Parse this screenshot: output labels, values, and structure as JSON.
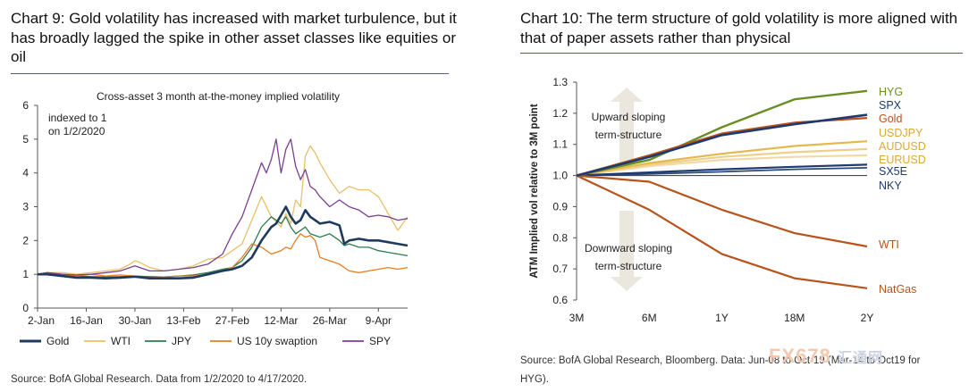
{
  "left": {
    "title": "Chart 9: Gold volatility has increased with market turbulence, but it has broadly lagged the spike in other asset classes like equities or oil",
    "source": "Source: BofA Global Research. Data from 1/2/2020 to 4/17/2020."
  },
  "right": {
    "title": "Chart 10: The term structure of gold volatility is more aligned with that of paper assets rather than physical",
    "source": "Source: BofA Global Research, Bloomberg. Data: Jun-08 to Oct-19 (Mar-14 to Oct19 for HYG)."
  },
  "watermark": {
    "brand": "FX678",
    "cn": "汇通网"
  },
  "chart_data": [
    {
      "type": "line",
      "title": "Cross-asset 3 month at-the-money implied volatility",
      "annotation": [
        "indexed to 1",
        "on 1/2/2020"
      ],
      "xlabel": "",
      "ylabel": "",
      "ylim": [
        0,
        6
      ],
      "yticks": [
        "0",
        "1",
        "2",
        "3",
        "4",
        "5",
        "6"
      ],
      "xticks": [
        "2-Jan",
        "16-Jan",
        "30-Jan",
        "13-Feb",
        "27-Feb",
        "12-Mar",
        "26-Mar",
        "9-Apr"
      ],
      "xtick_pos": [
        0,
        10,
        20,
        30,
        40,
        50,
        60,
        70
      ],
      "xmax": 76,
      "legend_position": "bottom",
      "series": [
        {
          "name": "Gold",
          "color": "#1f3a5f",
          "width": 2.6,
          "x": [
            0,
            2,
            5,
            8,
            11,
            14,
            17,
            20,
            23,
            26,
            29,
            32,
            35,
            38,
            40,
            42,
            44,
            46,
            48,
            49,
            50,
            51,
            52,
            53,
            54,
            55,
            56,
            57,
            58,
            60,
            62,
            63,
            64,
            66,
            68,
            70,
            72,
            74,
            76
          ],
          "values": [
            1.0,
            1.0,
            0.95,
            0.9,
            0.9,
            0.88,
            0.9,
            0.93,
            0.88,
            0.88,
            0.88,
            0.9,
            1.0,
            1.1,
            1.15,
            1.25,
            1.5,
            2.0,
            2.4,
            2.5,
            2.75,
            3.0,
            2.7,
            2.5,
            2.6,
            2.9,
            2.7,
            2.6,
            2.5,
            2.55,
            2.45,
            1.9,
            2.0,
            2.05,
            2.0,
            2.0,
            1.95,
            1.9,
            1.85
          ]
        },
        {
          "name": "WTI",
          "color": "#e8c06a",
          "width": 1.3,
          "x": [
            0,
            2,
            5,
            8,
            11,
            14,
            17,
            19,
            20,
            21,
            23,
            26,
            29,
            32,
            35,
            38,
            40,
            42,
            44,
            46,
            48,
            50,
            51,
            52,
            53,
            54,
            55,
            56,
            57,
            58,
            60,
            62,
            64,
            66,
            68,
            70,
            72,
            74,
            76
          ],
          "values": [
            1.0,
            1.05,
            1.05,
            1.0,
            1.05,
            1.1,
            1.15,
            1.3,
            1.4,
            1.35,
            1.2,
            1.1,
            1.15,
            1.25,
            1.45,
            1.5,
            1.7,
            1.9,
            2.6,
            3.3,
            2.7,
            2.4,
            2.8,
            2.5,
            3.2,
            3.0,
            4.5,
            4.8,
            4.6,
            4.3,
            3.8,
            3.4,
            3.6,
            3.5,
            3.5,
            3.3,
            2.8,
            2.3,
            2.7
          ]
        },
        {
          "name": "JPY",
          "color": "#2e7d4f",
          "width": 1.3,
          "x": [
            0,
            2,
            5,
            8,
            11,
            14,
            17,
            20,
            23,
            26,
            29,
            32,
            35,
            38,
            40,
            42,
            44,
            46,
            48,
            50,
            51,
            52,
            53,
            54,
            55,
            56,
            58,
            60,
            62,
            63,
            64,
            66,
            68,
            70,
            72,
            74,
            76
          ],
          "values": [
            1.0,
            0.98,
            0.95,
            0.95,
            0.93,
            0.92,
            0.93,
            0.95,
            0.93,
            0.92,
            0.95,
            0.98,
            1.05,
            1.15,
            1.2,
            1.4,
            1.8,
            2.4,
            2.7,
            2.5,
            2.7,
            2.4,
            2.2,
            2.3,
            2.4,
            2.2,
            2.1,
            2.2,
            2.0,
            1.85,
            1.9,
            1.8,
            1.8,
            1.7,
            1.65,
            1.6,
            1.55
          ]
        },
        {
          "name": "US 10y swaption",
          "color": "#e67e22",
          "width": 1.3,
          "x": [
            0,
            2,
            5,
            8,
            11,
            14,
            17,
            20,
            23,
            26,
            29,
            32,
            35,
            38,
            40,
            42,
            44,
            46,
            48,
            50,
            51,
            52,
            53,
            54,
            55,
            56,
            57,
            58,
            60,
            62,
            64,
            66,
            68,
            70,
            72,
            74,
            76
          ],
          "values": [
            1.0,
            1.05,
            1.0,
            0.95,
            1.0,
            0.95,
            0.98,
            0.95,
            0.9,
            0.92,
            0.95,
            0.95,
            1.0,
            1.1,
            1.2,
            1.5,
            1.9,
            1.8,
            1.6,
            1.7,
            1.8,
            1.75,
            2.0,
            2.2,
            2.1,
            2.15,
            2.0,
            1.5,
            1.4,
            1.3,
            1.1,
            1.05,
            1.1,
            1.15,
            1.2,
            1.15,
            1.2
          ]
        },
        {
          "name": "SPY",
          "color": "#7b3f8f",
          "width": 1.3,
          "x": [
            0,
            2,
            5,
            8,
            11,
            14,
            17,
            19,
            20,
            21,
            23,
            26,
            29,
            32,
            35,
            38,
            40,
            42,
            44,
            46,
            47,
            48,
            49,
            50,
            51,
            52,
            53,
            54,
            55,
            56,
            57,
            58,
            60,
            62,
            64,
            66,
            68,
            70,
            72,
            74,
            76
          ],
          "values": [
            1.0,
            1.05,
            1.0,
            0.98,
            1.0,
            1.05,
            1.1,
            1.2,
            1.25,
            1.2,
            1.1,
            1.1,
            1.15,
            1.2,
            1.3,
            1.6,
            2.2,
            2.7,
            3.5,
            4.3,
            4.0,
            4.4,
            5.0,
            4.0,
            4.7,
            5.0,
            4.2,
            3.8,
            4.1,
            3.6,
            3.5,
            3.3,
            3.0,
            3.2,
            3.0,
            2.9,
            2.7,
            2.75,
            2.7,
            2.6,
            2.65
          ]
        }
      ]
    },
    {
      "type": "line",
      "title": "",
      "xlabel": "",
      "ylabel": "ATM Implied vol relative to 3M point",
      "ylim": [
        0.6,
        1.3
      ],
      "yticks": [
        "0.6",
        "0.7",
        "0.8",
        "0.9",
        "1.0",
        "1.1",
        "1.2",
        "1.3"
      ],
      "categories": [
        "3M",
        "6M",
        "1Y",
        "18M",
        "2Y"
      ],
      "annotations": [
        {
          "lines": [
            "Upward sloping",
            "term-structure"
          ]
        },
        {
          "lines": [
            "Downward sloping",
            "term-structure"
          ]
        }
      ],
      "series": [
        {
          "name": "HYG",
          "color": "#6b8e23",
          "width": 2.4,
          "values": [
            1.0,
            1.05,
            1.155,
            1.245,
            1.272
          ]
        },
        {
          "name": "SPX",
          "color": "#1f3a6e",
          "width": 2.6,
          "values": [
            1.0,
            1.06,
            1.13,
            1.165,
            1.195
          ]
        },
        {
          "name": "Gold",
          "color": "#b8531c",
          "width": 2.2,
          "values": [
            1.0,
            1.065,
            1.135,
            1.17,
            1.185
          ]
        },
        {
          "name": "USDJPY",
          "color": "#e3b84e",
          "width": 2.2,
          "values": [
            1.0,
            1.04,
            1.07,
            1.095,
            1.11
          ]
        },
        {
          "name": "AUDUSD",
          "color": "#edd08a",
          "width": 2.2,
          "values": [
            1.0,
            1.035,
            1.06,
            1.075,
            1.085
          ]
        },
        {
          "name": "EURUSD",
          "color": "#f2d9a8",
          "width": 2.2,
          "values": [
            1.0,
            1.03,
            1.05,
            1.06,
            1.065
          ]
        },
        {
          "name": "SX5E",
          "color": "#1f3a6e",
          "width": 2.2,
          "values": [
            1.0,
            1.01,
            1.02,
            1.028,
            1.035
          ]
        },
        {
          "name": "NKY",
          "color": "#2a4a7a",
          "width": 1.8,
          "values": [
            1.0,
            1.005,
            1.012,
            1.02,
            1.025
          ]
        },
        {
          "name": "WTI",
          "color": "#b8531c",
          "width": 2.2,
          "values": [
            1.0,
            0.98,
            0.89,
            0.815,
            0.772
          ]
        },
        {
          "name": "NatGas",
          "color": "#b8531c",
          "width": 2.2,
          "values": [
            1.0,
            0.89,
            0.748,
            0.67,
            0.638
          ]
        }
      ]
    }
  ]
}
